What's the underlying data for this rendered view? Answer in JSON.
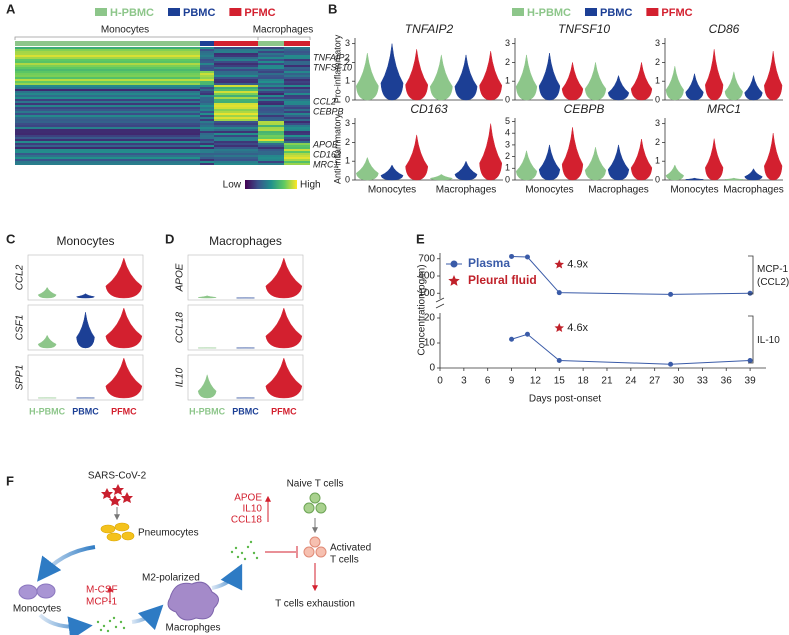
{
  "figure": {
    "panel_labels": [
      "A",
      "B",
      "C",
      "D",
      "E",
      "F"
    ],
    "groups": [
      {
        "name": "H-PBMC",
        "color": "#8dc68a"
      },
      {
        "name": "PBMC",
        "color": "#1c3f95"
      },
      {
        "name": "PFMC",
        "color": "#d3202f"
      }
    ],
    "heatmap": {
      "columns": [
        "Monocytes",
        "Macrophages"
      ],
      "genes": [
        "TNFAIP2",
        "TNFSF10",
        "CCL2",
        "CEBPB",
        "APOE",
        "CD163",
        "MRC1"
      ],
      "scale": [
        "Low",
        "High"
      ]
    }
  },
  "chart_data": [
    {
      "type": "violin",
      "rows": [
        "Pro-inflammatory",
        "Anti-inflammatory"
      ],
      "categories": [
        "Monocytes",
        "Macrophages"
      ],
      "genes": [
        {
          "title": "TNFAIP2",
          "ylim": [
            0,
            3.3
          ],
          "yticks": [
            0,
            1,
            2,
            3
          ],
          "values": [
            2.5,
            3,
            2.7,
            2.4,
            2.4,
            2.6
          ]
        },
        {
          "title": "TNFSF10",
          "ylim": [
            0,
            3.3
          ],
          "yticks": [
            0,
            1,
            2,
            3
          ],
          "values": [
            2.4,
            2.5,
            2,
            2,
            1.3,
            2
          ]
        },
        {
          "title": "CD86",
          "ylim": [
            0,
            3.3
          ],
          "yticks": [
            0,
            1,
            2,
            3
          ],
          "values": [
            1.8,
            1.4,
            2.7,
            1.5,
            1.3,
            2.6
          ]
        },
        {
          "title": "CD163",
          "ylim": [
            0,
            3.3
          ],
          "yticks": [
            0,
            1,
            2,
            3
          ],
          "values": [
            1.2,
            0.8,
            2.4,
            0.3,
            1,
            3
          ]
        },
        {
          "title": "CEBPB",
          "ylim": [
            0,
            5.3
          ],
          "yticks": [
            0,
            1,
            2,
            3,
            4,
            5
          ],
          "values": [
            2.5,
            3,
            4.5,
            2.8,
            3,
            3.5
          ]
        },
        {
          "title": "MRC1",
          "ylim": [
            0,
            3.3
          ],
          "yticks": [
            0,
            1,
            2,
            3
          ],
          "values": [
            0.8,
            0.1,
            2.2,
            0.1,
            0.6,
            2.5
          ]
        }
      ]
    },
    {
      "type": "violin",
      "title": "Monocytes",
      "categories": [
        "H-PBMC",
        "PBMC",
        "PFMC"
      ],
      "ylim": [
        0,
        1
      ],
      "genes": [
        {
          "title": "CCL2",
          "values": [
            0.3,
            0.15,
            1
          ]
        },
        {
          "title": "CSF1",
          "values": [
            0.35,
            0.9,
            1
          ]
        },
        {
          "title": "SPP1",
          "values": [
            0.05,
            0.05,
            1
          ]
        }
      ]
    },
    {
      "type": "violin",
      "title": "Macrophages",
      "categories": [
        "H-PBMC",
        "PBMC",
        "PFMC"
      ],
      "ylim": [
        0,
        1
      ],
      "genes": [
        {
          "title": "APOE",
          "values": [
            0.1,
            0.05,
            1
          ]
        },
        {
          "title": "CCL18",
          "values": [
            0.05,
            0.05,
            1
          ]
        },
        {
          "title": "IL10",
          "values": [
            0.6,
            0.05,
            1
          ]
        }
      ]
    },
    {
      "type": "line",
      "xlabel": "Days post-onset",
      "ylabel": "Concentration(pg/m)",
      "x": [
        9,
        11,
        15,
        29,
        39
      ],
      "xlim": [
        0,
        41
      ],
      "xticks": [
        0,
        3,
        6,
        9,
        12,
        15,
        18,
        21,
        24,
        27,
        30,
        33,
        36,
        39
      ],
      "series": [
        {
          "name": "Plasma",
          "color": "#3a5ba8"
        },
        {
          "name": "Pleural fluid",
          "color": "#c0212a"
        }
      ],
      "axes": [
        {
          "label": [
            "MCP-1",
            "(CCL2)"
          ],
          "ylim": [
            0,
            800
          ],
          "yticks": [
            100,
            400,
            700
          ],
          "plasma": [
            740,
            730,
            110,
            80,
            100
          ],
          "pleural_fluid": {
            "x": 15,
            "value": 600
          },
          "annotation": "4.9x"
        },
        {
          "label": [
            "IL-10"
          ],
          "ylim": [
            0,
            22
          ],
          "yticks": [
            0,
            10,
            20
          ],
          "plasma": [
            11.5,
            13.5,
            3,
            1.5,
            3
          ],
          "pleural_fluid": {
            "x": 15,
            "value": 16
          },
          "annotation": "4.6x"
        }
      ]
    }
  ],
  "diagram": {
    "virus": "SARS-CoV-2",
    "pneumocytes": "Pneumocytes",
    "monocytes": "Monocytes",
    "monocyte_factors": [
      "M-CSF",
      "MCP-1"
    ],
    "m2": "M2-polarized",
    "macrophages": "Macrophges",
    "macrophage_factors": [
      "APOE",
      "IL10",
      "CCL18"
    ],
    "naive": "Naive T cells",
    "activated": [
      "Activated",
      "T cells"
    ],
    "exhaustion": "T cells exhaustion"
  }
}
